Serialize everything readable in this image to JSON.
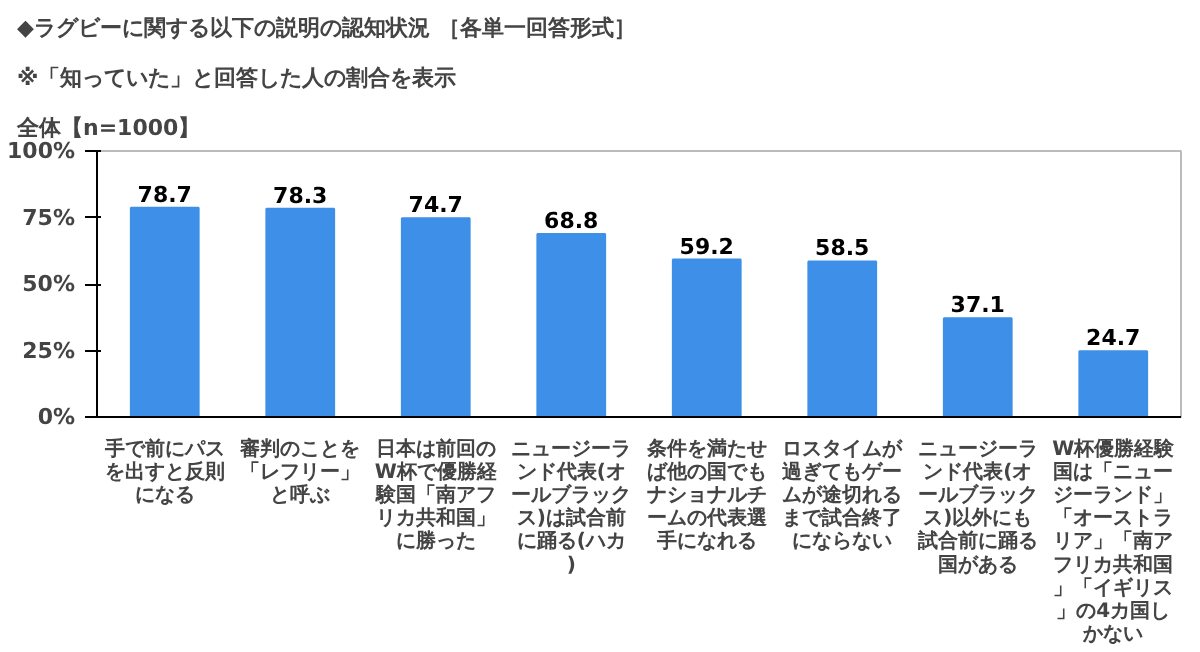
{
  "chart_data": {
    "type": "bar",
    "title": "◆ラグビーに関する以下の説明の認知状況 ［各単一回答形式］",
    "subtitle": "※「知っていた」と回答した人の割合を表示",
    "annotations": [
      "全体【n=1000】"
    ],
    "categories": [
      "手で前にパスを出すと反則になる",
      "審判のことを「レフリー」と呼ぶ",
      "日本は前回のW杯で優勝経験国「南アフリカ共和国」に勝った",
      "ニュージーランド代表(オールブラックス)は試合前に踊る(ハカ)",
      "条件を満たせば他の国でもナショナルチームの代表選手になれる",
      "ロスタイムが過ぎてもゲームが途切れるまで試合終了にならない",
      "ニュージーランド代表(オールブラックス)以外にも試合前に踊る国がある",
      "W杯優勝経験国は「ニュージーランド」「オーストラリア」「南アフリカ共和国」「イギリス」の4カ国しかない"
    ],
    "values": [
      78.7,
      78.3,
      74.7,
      68.8,
      59.2,
      58.5,
      37.1,
      24.7
    ],
    "color": "#3d8fe8",
    "data_labels": true,
    "ylim": [
      0,
      100
    ],
    "yticks": [
      {
        "value": 0,
        "label": "0%"
      },
      {
        "value": 25,
        "label": "25%"
      },
      {
        "value": 50,
        "label": "50%"
      },
      {
        "value": 75,
        "label": "75%"
      },
      {
        "value": 100,
        "label": "100%"
      }
    ],
    "grid": false
  }
}
